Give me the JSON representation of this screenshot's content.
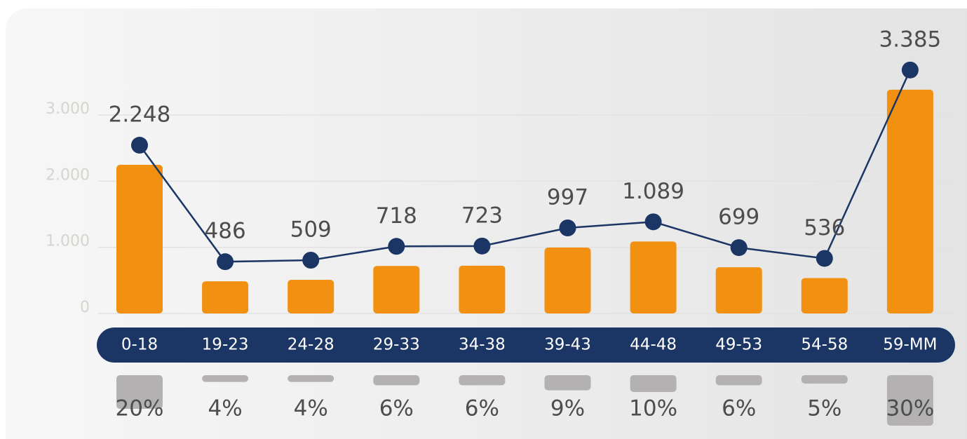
{
  "chart_data": {
    "type": "bar",
    "categories": [
      "0-18",
      "19-23",
      "24-28",
      "29-33",
      "34-38",
      "39-43",
      "44-48",
      "49-53",
      "54-58",
      "59-MM"
    ],
    "values": [
      2248,
      486,
      509,
      718,
      723,
      997,
      1089,
      699,
      536,
      3385
    ],
    "value_labels": [
      "2.248",
      "486",
      "509",
      "718",
      "723",
      "997",
      "1.089",
      "699",
      "536",
      "3.385"
    ],
    "color": "#f29111",
    "line_color": "#1b3564",
    "share_values": [
      20,
      4,
      4,
      6,
      6,
      9,
      10,
      6,
      5,
      30
    ],
    "share_labels": [
      "20%",
      "4%",
      "4%",
      "6%",
      "6%",
      "9%",
      "10%",
      "6%",
      "5%",
      "30%"
    ],
    "share_color": "#b3b1b2",
    "ylim": [
      0,
      3500
    ],
    "yticks": [
      0,
      {
        "value": 1000,
        "label": "1.000"
      },
      {
        "value": 2000,
        "label": "2.000"
      },
      {
        "value": 3000,
        "label": "3.000"
      }
    ],
    "grid": true
  }
}
